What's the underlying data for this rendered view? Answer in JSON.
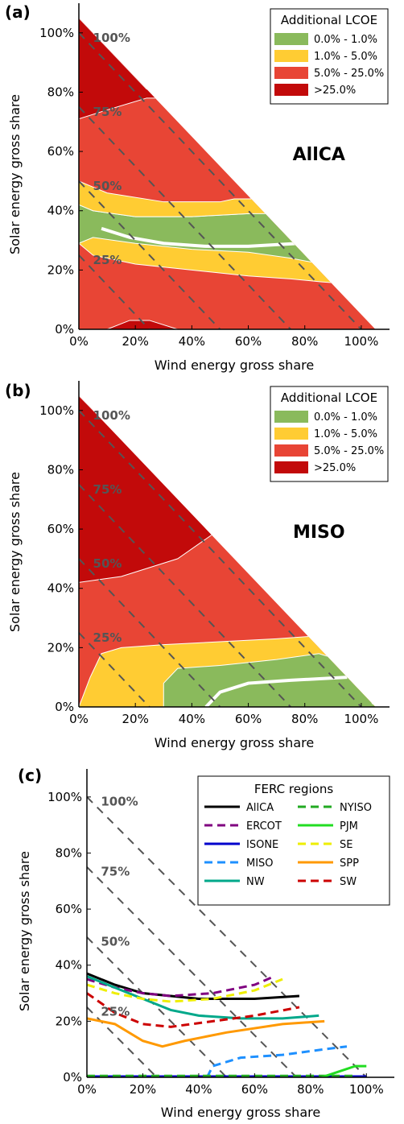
{
  "colors": {
    "band_0_1": "#8aba5c",
    "band_1_5": "#ffcc33",
    "band_5_25": "#e84535",
    "band_gt25": "#c20a0a",
    "iso_line": "#555555"
  },
  "chart_data": [
    {
      "type": "area",
      "panel_label": "(a)",
      "region": "AllCA",
      "xlabel": "Wind energy gross share",
      "ylabel": "Solar energy gross share",
      "xlim": [
        0,
        110
      ],
      "ylim": [
        0,
        110
      ],
      "x_ticks": [
        "0%",
        "20%",
        "40%",
        "60%",
        "80%",
        "100%"
      ],
      "y_ticks": [
        "0%",
        "20%",
        "40%",
        "60%",
        "80%",
        "100%"
      ],
      "isolines": [
        {
          "total": 25,
          "label": "25%"
        },
        {
          "total": 50,
          "label": "50%"
        },
        {
          "total": 75,
          "label": "75%"
        },
        {
          "total": 100,
          "label": "100%"
        }
      ],
      "legend_title": "Additional LCOE",
      "legend_position": "top-right",
      "legend": [
        "0.0% - 1.0%",
        "1.0% - 5.0%",
        "5.0% - 25.0%",
        ">25.0%"
      ],
      "bands": [
        {
          "range": "5.0% - 25.0%",
          "boundary": [
            [
              0,
              0
            ],
            [
              0,
              0
            ]
          ]
        },
        {
          "range": "1.0% - 5.0%",
          "lower": [
            [
              0,
              29
            ],
            [
              5,
              25
            ],
            [
              20,
              22
            ],
            [
              40,
              20
            ],
            [
              60,
              18
            ],
            [
              75,
              17
            ],
            [
              86,
              16
            ],
            [
              100,
              15
            ]
          ],
          "upper": [
            [
              0,
              30
            ],
            [
              4,
              32
            ],
            [
              20,
              30
            ],
            [
              40,
              30
            ],
            [
              60,
              31
            ],
            [
              75,
              31
            ],
            [
              86,
              31
            ]
          ]
        },
        {
          "range": "0.0% - 1.0%",
          "lower": [
            [
              0,
              29
            ],
            [
              5,
              31
            ],
            [
              20,
              29
            ],
            [
              40,
              27
            ],
            [
              60,
              26
            ],
            [
              75,
              24
            ],
            [
              86,
              22
            ],
            [
              100,
              20
            ]
          ],
          "upper": [
            [
              0,
              42
            ],
            [
              5,
              40
            ],
            [
              20,
              38
            ],
            [
              40,
              38
            ],
            [
              60,
              39
            ],
            [
              75,
              40
            ],
            [
              86,
              41
            ]
          ]
        },
        {
          "range": "1.0% - 5.0%",
          "lower": [
            [
              0,
              42
            ],
            [
              5,
              40
            ],
            [
              20,
              38
            ],
            [
              40,
              38
            ],
            [
              60,
              39
            ]
          ],
          "upper": [
            [
              0,
              50
            ],
            [
              10,
              46
            ],
            [
              30,
              43
            ],
            [
              50,
              43
            ],
            [
              55,
              44
            ]
          ]
        },
        {
          "range": ">25.0%",
          "lower": [
            [
              0,
              71
            ],
            [
              10,
              74
            ],
            [
              24,
              78
            ]
          ],
          "upper": [
            [
              0,
              105
            ],
            [
              24,
              81
            ]
          ]
        },
        {
          "range": ">25.0%",
          "lower": [
            [
              10,
              0
            ],
            [
              18,
              3
            ],
            [
              25,
              3
            ],
            [
              35,
              0
            ]
          ],
          "upper": [
            [
              10,
              0
            ],
            [
              35,
              0
            ]
          ]
        }
      ],
      "optimum_curve": [
        [
          8,
          34
        ],
        [
          18,
          31
        ],
        [
          30,
          29
        ],
        [
          45,
          28
        ],
        [
          60,
          28
        ],
        [
          78,
          29
        ]
      ]
    },
    {
      "type": "area",
      "panel_label": "(b)",
      "region": "MISO",
      "xlabel": "Wind energy gross share",
      "ylabel": "Solar energy gross share",
      "xlim": [
        0,
        110
      ],
      "ylim": [
        0,
        110
      ],
      "x_ticks": [
        "0%",
        "20%",
        "40%",
        "60%",
        "80%",
        "100%"
      ],
      "y_ticks": [
        "0%",
        "20%",
        "40%",
        "60%",
        "80%",
        "100%"
      ],
      "isolines": [
        {
          "total": 25,
          "label": "25%"
        },
        {
          "total": 50,
          "label": "50%"
        },
        {
          "total": 75,
          "label": "75%"
        },
        {
          "total": 100,
          "label": "100%"
        }
      ],
      "legend_title": "Additional LCOE",
      "legend_position": "top-right",
      "legend": [
        "0.0% - 1.0%",
        "1.0% - 5.0%",
        "5.0% - 25.0%",
        ">25.0%"
      ],
      "bands": [
        {
          "range": "1.0% - 5.0%",
          "lower": [
            [
              0,
              0
            ],
            [
              108,
              0
            ]
          ],
          "upper": [
            [
              4,
              10
            ],
            [
              8,
              18
            ],
            [
              15,
              20
            ],
            [
              30,
              21
            ],
            [
              50,
              22
            ],
            [
              70,
              23
            ],
            [
              85,
              24
            ]
          ]
        },
        {
          "range": "0.0% - 1.0%",
          "lower": [
            [
              30,
              0
            ],
            [
              104,
              0
            ]
          ],
          "upper": [
            [
              30,
              8
            ],
            [
              35,
              13
            ],
            [
              50,
              14
            ],
            [
              70,
              16
            ],
            [
              85,
              18
            ],
            [
              95,
              15
            ],
            [
              104,
              1
            ]
          ]
        },
        {
          "range": ">25.0%",
          "lower": [
            [
              0,
              42
            ],
            [
              15,
              44
            ],
            [
              35,
              50
            ],
            [
              47,
              58
            ]
          ],
          "upper": [
            [
              0,
              105
            ],
            [
              47,
              59
            ]
          ]
        }
      ],
      "optimum_curve": [
        [
          45,
          0
        ],
        [
          50,
          5
        ],
        [
          60,
          8
        ],
        [
          75,
          9
        ],
        [
          95,
          10
        ]
      ]
    },
    {
      "type": "line",
      "panel_label": "(c)",
      "xlabel": "Wind energy gross share",
      "ylabel": "Solar energy gross share",
      "xlim": [
        0,
        110
      ],
      "ylim": [
        0,
        110
      ],
      "x_ticks": [
        "0%",
        "20%",
        "40%",
        "60%",
        "80%",
        "100%"
      ],
      "y_ticks": [
        "0%",
        "20%",
        "40%",
        "60%",
        "80%",
        "100%"
      ],
      "isolines": [
        {
          "total": 25,
          "label": "25%"
        },
        {
          "total": 50,
          "label": "50%"
        },
        {
          "total": 75,
          "label": "75%"
        },
        {
          "total": 100,
          "label": "100%"
        }
      ],
      "legend_title": "FERC regions",
      "legend_position": "top-right",
      "series": [
        {
          "name": "AllCA",
          "color": "#000000",
          "dash": false,
          "points": [
            [
              0,
              37
            ],
            [
              10,
              33
            ],
            [
              20,
              30
            ],
            [
              40,
              28
            ],
            [
              60,
              28
            ],
            [
              76,
              29
            ]
          ]
        },
        {
          "name": "ERCOT",
          "color": "#800080",
          "dash": true,
          "points": [
            [
              0,
              35
            ],
            [
              10,
              32
            ],
            [
              20,
              30
            ],
            [
              30,
              29
            ],
            [
              45,
              30
            ],
            [
              60,
              33
            ],
            [
              67,
              36
            ]
          ]
        },
        {
          "name": "ISONE",
          "color": "#0000cc",
          "dash": false,
          "points": [
            [
              0,
              0.3
            ],
            [
              100,
              0.3
            ]
          ]
        },
        {
          "name": "MISO",
          "color": "#1e90ff",
          "dash": true,
          "points": [
            [
              43,
              0
            ],
            [
              45,
              4
            ],
            [
              55,
              7
            ],
            [
              70,
              8
            ],
            [
              85,
              10
            ],
            [
              93,
              11
            ]
          ]
        },
        {
          "name": "NW",
          "color": "#00a88a",
          "dash": false,
          "points": [
            [
              0,
              36
            ],
            [
              10,
              32
            ],
            [
              20,
              28
            ],
            [
              30,
              24
            ],
            [
              40,
              22
            ],
            [
              55,
              21
            ],
            [
              70,
              21
            ],
            [
              83,
              22
            ]
          ]
        },
        {
          "name": "NYISO",
          "color": "#22aa22",
          "dash": true,
          "points": [
            [
              0,
              0.5
            ],
            [
              95,
              0.5
            ]
          ]
        },
        {
          "name": "PJM",
          "color": "#22dd22",
          "dash": false,
          "points": [
            [
              84,
              0
            ],
            [
              90,
              2
            ],
            [
              96,
              4
            ],
            [
              100,
              4
            ]
          ]
        },
        {
          "name": "SE",
          "color": "#eeee00",
          "dash": true,
          "points": [
            [
              0,
              33
            ],
            [
              10,
              30
            ],
            [
              20,
              28
            ],
            [
              30,
              27
            ],
            [
              45,
              28
            ],
            [
              60,
              31
            ],
            [
              70,
              35
            ]
          ]
        },
        {
          "name": "SPP",
          "color": "#ff9900",
          "dash": false,
          "points": [
            [
              0,
              21
            ],
            [
              10,
              19
            ],
            [
              20,
              13
            ],
            [
              27,
              11
            ],
            [
              35,
              13
            ],
            [
              50,
              16
            ],
            [
              70,
              19
            ],
            [
              85,
              20
            ]
          ]
        },
        {
          "name": "SW",
          "color": "#cc0000",
          "dash": true,
          "points": [
            [
              0,
              30
            ],
            [
              10,
              23
            ],
            [
              20,
              19
            ],
            [
              30,
              18
            ],
            [
              45,
              20
            ],
            [
              60,
              22
            ],
            [
              76,
              25
            ]
          ]
        }
      ]
    }
  ]
}
